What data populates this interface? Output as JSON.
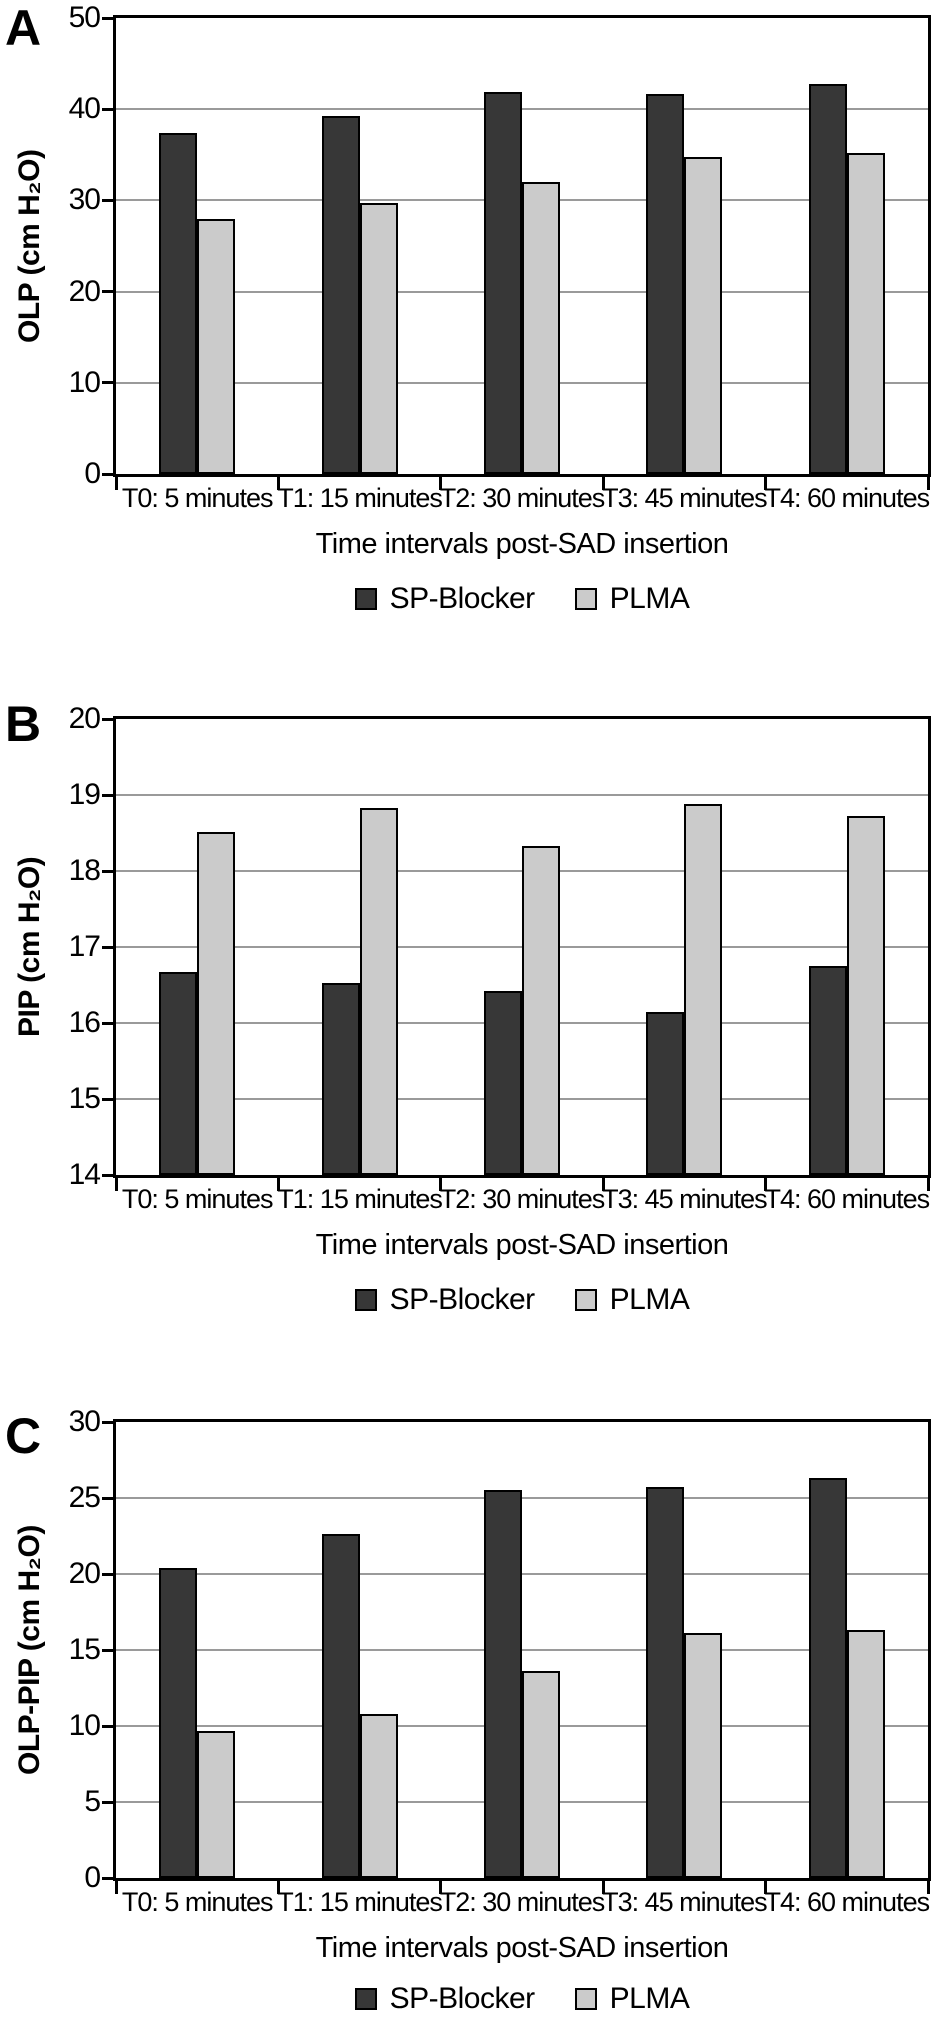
{
  "figure": {
    "legend": [
      {
        "label": "SP-Blocker",
        "color": "#373737"
      },
      {
        "label": "PLMA",
        "color": "#cbcbcb"
      }
    ],
    "colors": {
      "bar_border": "#000000",
      "gridline": "#9a9a9a",
      "axis": "#000000",
      "background": "#ffffff"
    }
  },
  "chart_data": [
    {
      "type": "bar",
      "panel": "A",
      "title": "",
      "ylabel": "OLP (cm H₂O)",
      "xlabel": "Time intervals post-SAD insertion",
      "categories": [
        "T0: 5 minutes",
        "T1: 15 minutes",
        "T2: 30 minutes",
        "T3: 45 minutes",
        "T4: 60 minutes"
      ],
      "series": [
        {
          "name": "SP-Blocker",
          "color": "#373737",
          "values": [
            37.4,
            39.2,
            41.9,
            41.7,
            42.8
          ]
        },
        {
          "name": "PLMA",
          "color": "#cbcbcb",
          "values": [
            28.0,
            29.7,
            32.0,
            34.8,
            35.2
          ]
        }
      ],
      "ylim": [
        0,
        50
      ],
      "yticks": [
        0,
        10,
        20,
        30,
        40,
        50
      ],
      "grid": true,
      "legend_position": "bottom"
    },
    {
      "type": "bar",
      "panel": "B",
      "title": "",
      "ylabel": "PIP (cm H₂O)",
      "xlabel": "Time intervals post-SAD insertion",
      "categories": [
        "T0: 5 minutes",
        "T1: 15 minutes",
        "T2: 30 minutes",
        "T3: 45 minutes",
        "T4: 60 minutes"
      ],
      "series": [
        {
          "name": "SP-Blocker",
          "color": "#373737",
          "values": [
            16.67,
            16.52,
            16.42,
            16.14,
            16.75
          ]
        },
        {
          "name": "PLMA",
          "color": "#cbcbcb",
          "values": [
            18.51,
            18.83,
            18.33,
            18.88,
            18.72
          ]
        }
      ],
      "ylim": [
        14,
        20
      ],
      "yticks": [
        14,
        15,
        16,
        17,
        18,
        19,
        20
      ],
      "grid": true,
      "legend_position": "bottom"
    },
    {
      "type": "bar",
      "panel": "C",
      "title": "",
      "ylabel": "OLP-PIP (cm H₂O)",
      "xlabel": "Time intervals post-SAD insertion",
      "categories": [
        "T0: 5 minutes",
        "T1: 15 minutes",
        "T2: 30 minutes",
        "T3: 45 minutes",
        "T4: 60 minutes"
      ],
      "series": [
        {
          "name": "SP-Blocker",
          "color": "#373737",
          "values": [
            20.4,
            22.6,
            25.5,
            25.7,
            26.3
          ]
        },
        {
          "name": "PLMA",
          "color": "#cbcbcb",
          "values": [
            9.7,
            10.8,
            13.6,
            16.1,
            16.3
          ]
        }
      ],
      "ylim": [
        0,
        30
      ],
      "yticks": [
        0,
        5,
        10,
        15,
        20,
        25,
        30
      ],
      "grid": true,
      "legend_position": "bottom"
    }
  ]
}
